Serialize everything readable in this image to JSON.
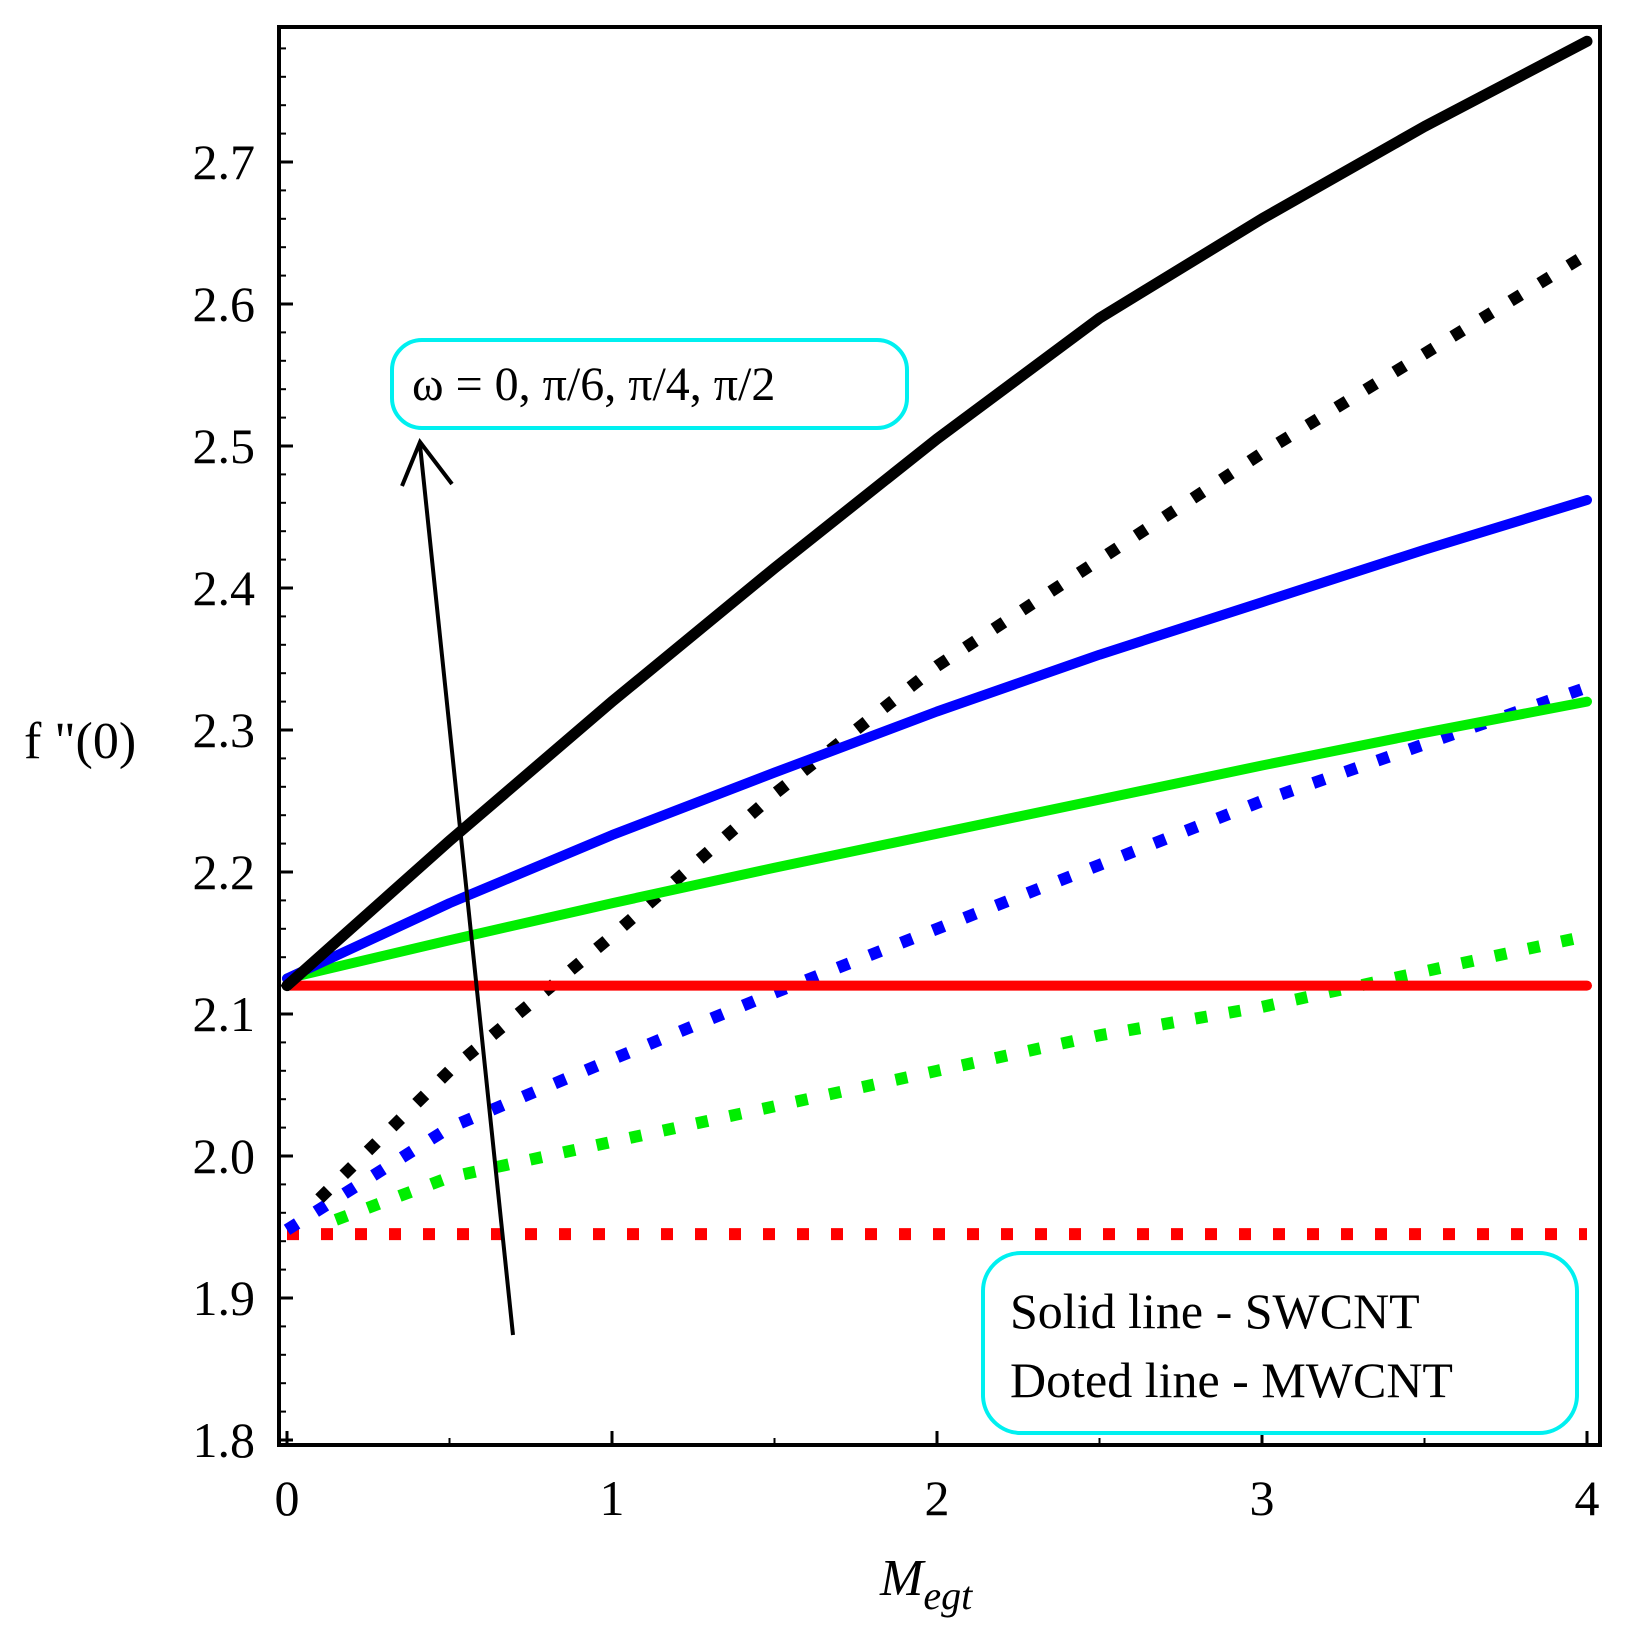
{
  "chart_data": {
    "type": "line",
    "title": "",
    "xlabel": "M",
    "xlabel_sub": "egt",
    "ylabel": "f \"(0)",
    "xlim": [
      0,
      4
    ],
    "ylim": [
      1.8,
      2.78
    ],
    "x_ticks": [
      "0",
      "1",
      "2",
      "3",
      "4"
    ],
    "y_ticks": [
      "1.8",
      "1.9",
      "2.0",
      "2.1",
      "2.2",
      "2.3",
      "2.4",
      "2.5",
      "2.6",
      "2.7"
    ],
    "grid": false,
    "annotation": "ω = 0, π/6, π/4, π/2",
    "legend_lines": [
      "Solid line - SWCNT",
      "Doted line - MWCNT"
    ],
    "legend_position": "bottom-right",
    "series": [
      {
        "name": "SWCNT ω=0",
        "style": "solid",
        "color": "#ff0000",
        "x": [
          0,
          1,
          2,
          3,
          4
        ],
        "y": [
          2.12,
          2.12,
          2.12,
          2.12,
          2.12
        ]
      },
      {
        "name": "SWCNT ω=π/6",
        "style": "solid",
        "color": "#00ee00",
        "x": [
          0,
          0.5,
          1,
          1.5,
          2,
          2.5,
          3,
          3.5,
          4
        ],
        "y": [
          2.125,
          2.152,
          2.178,
          2.203,
          2.227,
          2.251,
          2.275,
          2.298,
          2.32
        ]
      },
      {
        "name": "SWCNT ω=π/4",
        "style": "solid",
        "color": "#0000ff",
        "x": [
          0,
          0.5,
          1,
          1.5,
          2,
          2.5,
          3,
          3.5,
          4
        ],
        "y": [
          2.125,
          2.178,
          2.226,
          2.27,
          2.313,
          2.353,
          2.39,
          2.427,
          2.462
        ]
      },
      {
        "name": "SWCNT ω=π/2",
        "style": "solid",
        "color": "#000000",
        "x": [
          0,
          0.5,
          1,
          1.5,
          2,
          2.5,
          3,
          3.5,
          4
        ],
        "y": [
          2.12,
          2.222,
          2.32,
          2.414,
          2.505,
          2.59,
          2.66,
          2.725,
          2.785
        ]
      },
      {
        "name": "MWCNT ω=0",
        "style": "dotted",
        "color": "#ff0000",
        "x": [
          0,
          1,
          2,
          3,
          4
        ],
        "y": [
          1.945,
          1.945,
          1.945,
          1.945,
          1.945
        ]
      },
      {
        "name": "MWCNT ω=π/6",
        "style": "dotted",
        "color": "#00ee00",
        "x": [
          0.15,
          0.5,
          1,
          1.5,
          2,
          2.5,
          3,
          3.5,
          4
        ],
        "y": [
          1.955,
          1.985,
          2.01,
          2.035,
          2.06,
          2.085,
          2.105,
          2.13,
          2.155
        ]
      },
      {
        "name": "MWCNT ω=π/4",
        "style": "dotted",
        "color": "#0000ff",
        "x": [
          0,
          0.5,
          1,
          1.5,
          2,
          2.5,
          3,
          3.5,
          4
        ],
        "y": [
          1.948,
          2.02,
          2.068,
          2.115,
          2.16,
          2.205,
          2.25,
          2.29,
          2.33
        ]
      },
      {
        "name": "MWCNT ω=π/2",
        "style": "dotted",
        "color": "#000000",
        "x": [
          0.1,
          0.3,
          0.5,
          1,
          1.5,
          2,
          2.5,
          3,
          3.5,
          4
        ],
        "y": [
          1.97,
          2.015,
          2.06,
          2.155,
          2.255,
          2.345,
          2.42,
          2.495,
          2.565,
          2.635
        ]
      }
    ]
  }
}
